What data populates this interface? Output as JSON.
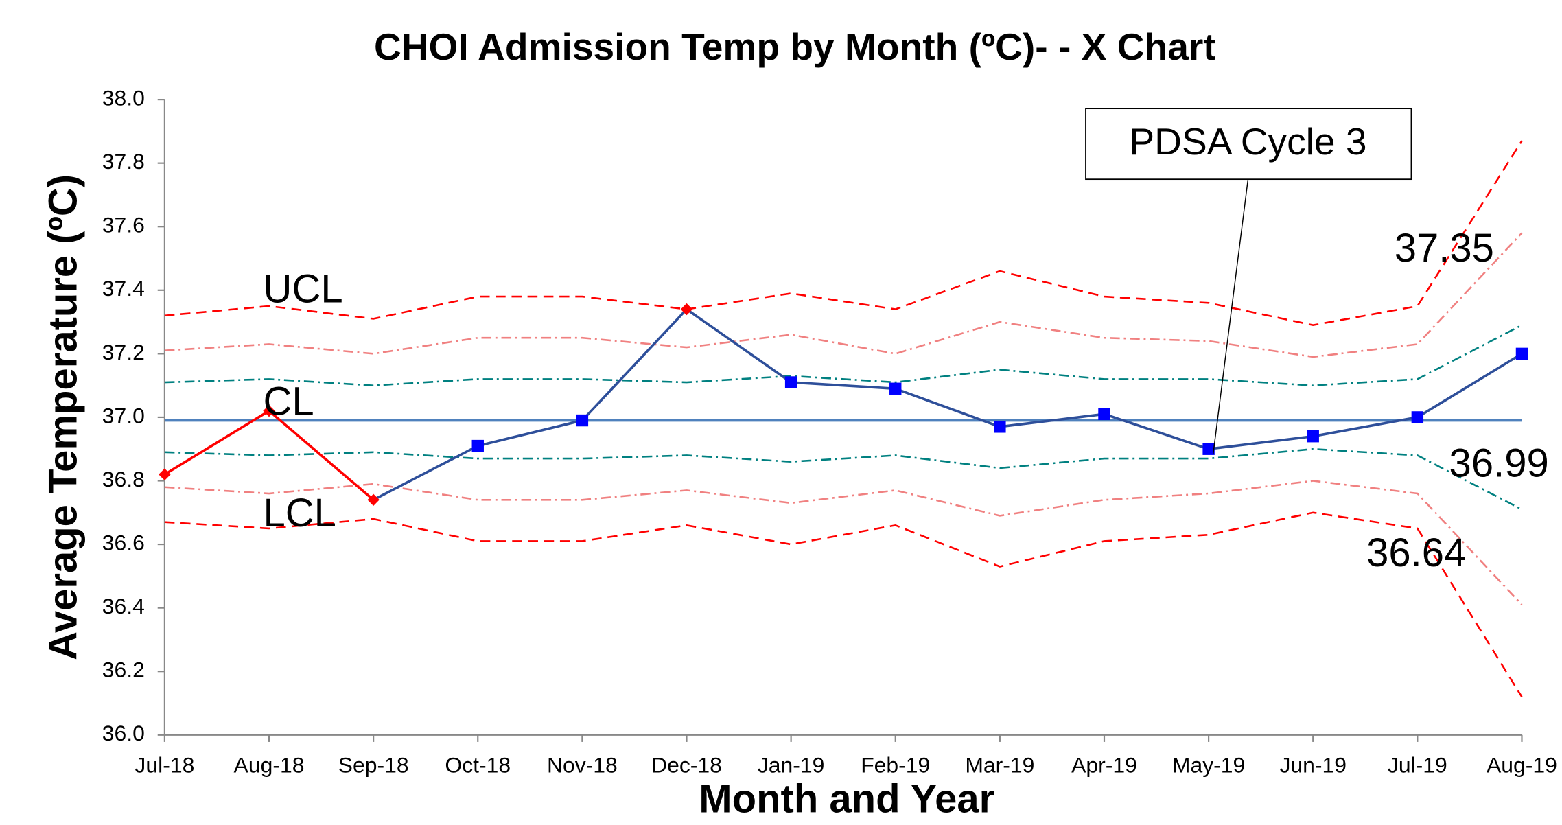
{
  "chart_data": {
    "type": "line",
    "title": "CHOI Admission Temp by Month  (ºC)- - X Chart",
    "xlabel": "Month and Year",
    "ylabel": "Average Temperature (ºC)",
    "categories": [
      "Jul-18",
      "Aug-18",
      "Sep-18",
      "Oct-18",
      "Nov-18",
      "Dec-18",
      "Jan-19",
      "Feb-19",
      "Mar-19",
      "Apr-19",
      "May-19",
      "Jun-19",
      "Jul-19",
      "Aug-19"
    ],
    "ylim": [
      36,
      38
    ],
    "yticks": [
      {
        "value": 36,
        "label": "36.0"
      },
      {
        "value": 36.2,
        "label": "36.2"
      },
      {
        "value": 36.4,
        "label": "36.4"
      },
      {
        "value": 36.6,
        "label": "36.6"
      },
      {
        "value": 36.8,
        "label": "36.8"
      },
      {
        "value": 37,
        "label": "37.0"
      },
      {
        "value": 37.2,
        "label": "37.2"
      },
      {
        "value": 37.4,
        "label": "37.4"
      },
      {
        "value": 37.6,
        "label": "37.6"
      },
      {
        "value": 37.8,
        "label": "37.8"
      },
      {
        "value": 38,
        "label": "38.0"
      }
    ],
    "series": [
      {
        "color": "#ff0000",
        "dash": "10,6",
        "values": [
          37.32,
          37.35,
          37.31,
          37.38,
          37.38,
          37.34,
          37.39,
          37.34,
          37.46,
          37.38,
          37.36,
          37.29,
          37.35,
          37.87
        ]
      },
      {
        "color": "#f08080",
        "dash": "10,4,2,4",
        "values": [
          37.21,
          37.23,
          37.2,
          37.25,
          37.25,
          37.22,
          37.26,
          37.2,
          37.3,
          37.25,
          37.24,
          37.19,
          37.23,
          37.58
        ]
      },
      {
        "color": "#008080",
        "dash": "10,4,2,4",
        "values": [
          37.11,
          37.12,
          37.1,
          37.12,
          37.12,
          37.11,
          37.13,
          37.11,
          37.15,
          37.12,
          37.12,
          37.1,
          37.12,
          37.29
        ]
      },
      {
        "color": "#4f81bd",
        "dash": "",
        "values": [
          36.99,
          36.99,
          36.99,
          36.99,
          36.99,
          36.99,
          36.99,
          36.99,
          36.99,
          36.99,
          36.99,
          36.99,
          36.99,
          36.99
        ]
      },
      {
        "color": "#008080",
        "dash": "10,4,2,4",
        "values": [
          36.89,
          36.88,
          36.89,
          36.87,
          36.87,
          36.88,
          36.86,
          36.88,
          36.84,
          36.87,
          36.87,
          36.9,
          36.88,
          36.71
        ]
      },
      {
        "color": "#f08080",
        "dash": "10,4,2,4",
        "values": [
          36.78,
          36.76,
          36.79,
          36.74,
          36.74,
          36.77,
          36.73,
          36.77,
          36.69,
          36.74,
          36.76,
          36.8,
          36.76,
          36.41
        ]
      },
      {
        "color": "#ff0000",
        "dash": "10,6",
        "values": [
          36.67,
          36.65,
          36.68,
          36.61,
          36.61,
          36.66,
          36.6,
          36.66,
          36.53,
          36.61,
          36.63,
          36.7,
          36.65,
          36.12
        ]
      },
      {
        "color": "#2e4f9a",
        "values": [
          36.82,
          37.02,
          36.74,
          36.91,
          36.99,
          37.34,
          37.11,
          37.09,
          36.97,
          37.01,
          36.9,
          36.94,
          37.0,
          37.2
        ],
        "point_colors": [
          "#ff0000",
          "#ff0000",
          "#ff0000",
          "#0000ff",
          "#0000ff",
          "#ff0000",
          "#0000ff",
          "#0000ff",
          "#0000ff",
          "#0000ff",
          "#0000ff",
          "#0000ff",
          "#0000ff",
          "#0000ff"
        ],
        "markers": [
          "diamond",
          "diamond",
          "diamond",
          "square",
          "square",
          "diamond",
          "square",
          "square",
          "square",
          "square",
          "square",
          "square",
          "square",
          "square"
        ]
      }
    ],
    "annotations": [
      "UCL",
      "CL",
      "LCL",
      "37.35",
      "36.99",
      "36.64",
      "PDSA Cycle 3"
    ]
  }
}
